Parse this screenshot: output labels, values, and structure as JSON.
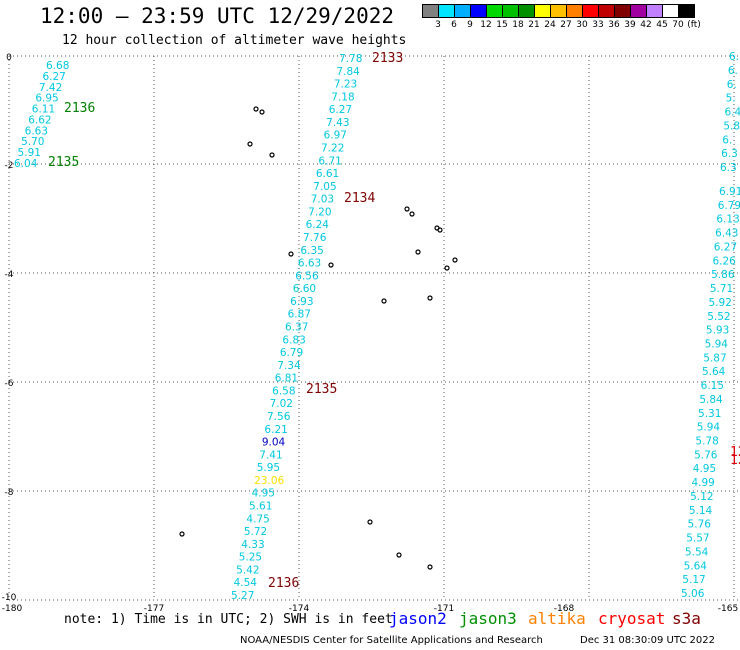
{
  "title": "12:00 – 23:59 UTC 12/29/2022",
  "subtitle": "12 hour collection of altimeter wave heights",
  "legend": {
    "colors": [
      "#808080",
      "#00e5ff",
      "#00b0ff",
      "#0000ff",
      "#00d800",
      "#00c000",
      "#009000",
      "#ffff00",
      "#ffc000",
      "#ff8000",
      "#ff0000",
      "#c00000",
      "#800000",
      "#a000a0",
      "#c080ff",
      "#ffffff",
      "#000000"
    ],
    "labels": [
      "3",
      "6",
      "9",
      "12",
      "15",
      "18",
      "21",
      "24",
      "27",
      "30",
      "33",
      "36",
      "39",
      "42",
      "45",
      "70",
      "(ft)"
    ]
  },
  "axes": {
    "x_ticks": [
      "-180",
      "-177",
      "-174",
      "-171",
      "-168",
      "-165"
    ],
    "y_ticks": [
      "0",
      "-2",
      "-4",
      "-6",
      "-8",
      "-10"
    ]
  },
  "track_a": [
    {
      "v": "6.68",
      "c": "#00c8e0"
    },
    {
      "v": "6.27",
      "c": "#00c8e0"
    },
    {
      "v": "7.42",
      "c": "#00c8e0"
    },
    {
      "v": "6.95",
      "c": "#00c8e0"
    },
    {
      "v": "6.11",
      "c": "#00c8e0"
    },
    {
      "v": "6.62",
      "c": "#00c8e0"
    },
    {
      "v": "6.63",
      "c": "#00c8e0"
    },
    {
      "v": "5.70",
      "c": "#00c8e0"
    },
    {
      "v": "5.91",
      "c": "#00c8e0"
    },
    {
      "v": "6.04",
      "c": "#00c8e0"
    }
  ],
  "track_b": [
    {
      "v": "7.78",
      "c": "#00c8e0"
    },
    {
      "v": "7.84",
      "c": "#00c8e0"
    },
    {
      "v": "7.23",
      "c": "#00c8e0"
    },
    {
      "v": "7.18",
      "c": "#00c8e0"
    },
    {
      "v": "6.27",
      "c": "#00c8e0"
    },
    {
      "v": "7.43",
      "c": "#00c8e0"
    },
    {
      "v": "6.97",
      "c": "#00c8e0"
    },
    {
      "v": "7.22",
      "c": "#00c8e0"
    },
    {
      "v": "6.71",
      "c": "#00c8e0"
    },
    {
      "v": "6.61",
      "c": "#00c8e0"
    },
    {
      "v": "7.05",
      "c": "#00c8e0"
    },
    {
      "v": "7.03",
      "c": "#00c8e0"
    },
    {
      "v": "7.20",
      "c": "#00c8e0"
    },
    {
      "v": "6.24",
      "c": "#00c8e0"
    },
    {
      "v": "7.76",
      "c": "#00c8e0"
    },
    {
      "v": "6.35",
      "c": "#00c8e0"
    },
    {
      "v": "6.63",
      "c": "#00c8e0"
    },
    {
      "v": "6.56",
      "c": "#00c8e0"
    },
    {
      "v": "6.60",
      "c": "#00c8e0"
    },
    {
      "v": "6.93",
      "c": "#00c8e0"
    },
    {
      "v": "6.87",
      "c": "#00c8e0"
    },
    {
      "v": "6.37",
      "c": "#00c8e0"
    },
    {
      "v": "6.83",
      "c": "#00c8e0"
    },
    {
      "v": "6.79",
      "c": "#00c8e0"
    },
    {
      "v": "7.34",
      "c": "#00c8e0"
    },
    {
      "v": "6.81",
      "c": "#00c8e0"
    },
    {
      "v": "6.58",
      "c": "#00c8e0"
    },
    {
      "v": "7.02",
      "c": "#00c8e0"
    },
    {
      "v": "7.56",
      "c": "#00c8e0"
    },
    {
      "v": "6.21",
      "c": "#00c8e0"
    },
    {
      "v": "9.04",
      "c": "#0000c0"
    },
    {
      "v": "7.41",
      "c": "#00c8e0"
    },
    {
      "v": "5.95",
      "c": "#00c8e0"
    },
    {
      "v": "23.06",
      "c": "#ffe000"
    },
    {
      "v": "4.95",
      "c": "#00c8e0"
    },
    {
      "v": "5.61",
      "c": "#00c8e0"
    },
    {
      "v": "4.75",
      "c": "#00c8e0"
    },
    {
      "v": "5.72",
      "c": "#00c8e0"
    },
    {
      "v": "4.33",
      "c": "#00c8e0"
    },
    {
      "v": "5.25",
      "c": "#00c8e0"
    },
    {
      "v": "5.42",
      "c": "#00c8e0"
    },
    {
      "v": "4.54",
      "c": "#00c8e0"
    },
    {
      "v": "5.27",
      "c": "#00c8e0"
    }
  ],
  "track_c": [
    {
      "v": "6.91",
      "c": "#00c8e0"
    },
    {
      "v": "6.79",
      "c": "#00c8e0"
    },
    {
      "v": "6.13",
      "c": "#00c8e0"
    },
    {
      "v": "6.43",
      "c": "#00c8e0"
    },
    {
      "v": "6.27",
      "c": "#00c8e0"
    },
    {
      "v": "6.26",
      "c": "#00c8e0"
    },
    {
      "v": "5.86",
      "c": "#00c8e0"
    },
    {
      "v": "5.71",
      "c": "#00c8e0"
    },
    {
      "v": "5.92",
      "c": "#00c8e0"
    },
    {
      "v": "5.52",
      "c": "#00c8e0"
    },
    {
      "v": "5.93",
      "c": "#00c8e0"
    },
    {
      "v": "5.94",
      "c": "#00c8e0"
    },
    {
      "v": "5.87",
      "c": "#00c8e0"
    },
    {
      "v": "5.64",
      "c": "#00c8e0"
    },
    {
      "v": "6.15",
      "c": "#00c8e0"
    },
    {
      "v": "5.84",
      "c": "#00c8e0"
    },
    {
      "v": "5.31",
      "c": "#00c8e0"
    },
    {
      "v": "5.94",
      "c": "#00c8e0"
    },
    {
      "v": "5.78",
      "c": "#00c8e0"
    },
    {
      "v": "5.76",
      "c": "#00c8e0"
    },
    {
      "v": "4.95",
      "c": "#00c8e0"
    },
    {
      "v": "4.99",
      "c": "#00c8e0"
    },
    {
      "v": "5.12",
      "c": "#00c8e0"
    },
    {
      "v": "5.14",
      "c": "#00c8e0"
    },
    {
      "v": "5.76",
      "c": "#00c8e0"
    },
    {
      "v": "5.57",
      "c": "#00c8e0"
    },
    {
      "v": "5.54",
      "c": "#00c8e0"
    },
    {
      "v": "5.64",
      "c": "#00c8e0"
    },
    {
      "v": "5.17",
      "c": "#00c8e0"
    },
    {
      "v": "5.06",
      "c": "#00c8e0"
    }
  ],
  "track_d_partial": [
    {
      "v": "6.",
      "c": "#00c8e0"
    },
    {
      "v": "6.",
      "c": "#00c8e0"
    },
    {
      "v": "6.",
      "c": "#00c8e0"
    },
    {
      "v": "5.",
      "c": "#00c8e0"
    },
    {
      "v": "6.4",
      "c": "#00c8e0"
    },
    {
      "v": "5.8",
      "c": "#00c8e0"
    },
    {
      "v": "6.",
      "c": "#00c8e0"
    },
    {
      "v": "6.3",
      "c": "#00c8e0"
    },
    {
      "v": "6.3",
      "c": "#00c8e0"
    }
  ],
  "time_labels": [
    {
      "t": "2136",
      "c": "#008000"
    },
    {
      "t": "2135",
      "c": "#008000"
    },
    {
      "t": "2133",
      "c": "#800000"
    },
    {
      "t": "2134",
      "c": "#800000"
    },
    {
      "t": "2135",
      "c": "#800000"
    },
    {
      "t": "2136",
      "c": "#800000"
    },
    {
      "t": "12",
      "c": "#e00000"
    },
    {
      "t": "12",
      "c": "#e00000"
    }
  ],
  "note": "note: 1) Time is in UTC; 2) SWH is in feet",
  "satellites": [
    {
      "name": "jason2",
      "color": "#0000ff"
    },
    {
      "name": "jason3",
      "color": "#009000"
    },
    {
      "name": "altika",
      "color": "#ff8000"
    },
    {
      "name": "cryosat",
      "color": "#ff0000"
    },
    {
      "name": "s3a",
      "color": "#800000"
    }
  ],
  "footer": "NOAA/NESDIS Center for Satellite Applications and Research",
  "footer_date": "Dec 31 08:30:09 UTC 2022"
}
